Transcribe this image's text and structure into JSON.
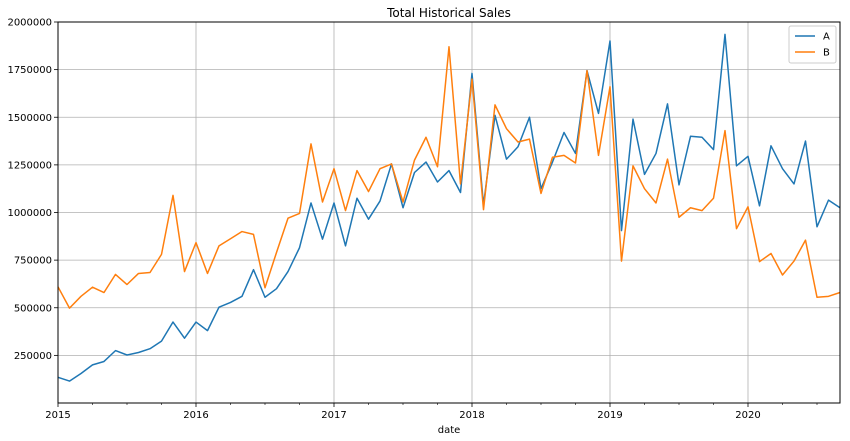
{
  "chart_data": {
    "type": "line",
    "title": "Total Historical Sales",
    "xlabel": "date",
    "ylabel": "",
    "x_start": "2015-01",
    "x_end": "2020-09",
    "xlim": [
      "2015-01",
      "2020-09"
    ],
    "ylim": [
      0,
      2000000
    ],
    "grid": true,
    "legend_position": "top-right",
    "x_ticks": [
      {
        "label": "2015",
        "month": "2015-01"
      },
      {
        "label": "2016",
        "month": "2016-01"
      },
      {
        "label": "2017",
        "month": "2017-01"
      },
      {
        "label": "2018",
        "month": "2018-01"
      },
      {
        "label": "2019",
        "month": "2019-01"
      },
      {
        "label": "2020",
        "month": "2020-01"
      }
    ],
    "y_ticks": [
      {
        "label": "250000",
        "value": 250000
      },
      {
        "label": "500000",
        "value": 500000
      },
      {
        "label": "750000",
        "value": 750000
      },
      {
        "label": "1000000",
        "value": 1000000
      },
      {
        "label": "1250000",
        "value": 1250000
      },
      {
        "label": "1500000",
        "value": 1500000
      },
      {
        "label": "1750000",
        "value": 1750000
      },
      {
        "label": "2000000",
        "value": 2000000
      }
    ],
    "series": [
      {
        "name": "A",
        "color": "#1f77b4",
        "values": [
          135000,
          115000,
          155000,
          200000,
          218000,
          275000,
          252000,
          265000,
          285000,
          325000,
          425000,
          340000,
          425000,
          380000,
          503000,
          528000,
          560000,
          700000,
          555000,
          600000,
          690000,
          815000,
          1050000,
          860000,
          1050000,
          825000,
          1075000,
          965000,
          1060000,
          1255000,
          1025000,
          1210000,
          1265000,
          1160000,
          1220000,
          1105000,
          1730000,
          1040000,
          1510000,
          1280000,
          1345000,
          1500000,
          1125000,
          1265000,
          1420000,
          1310000,
          1745000,
          1520000,
          1900000,
          905000,
          1490000,
          1200000,
          1310000,
          1570000,
          1145000,
          1400000,
          1395000,
          1330000,
          1935000,
          1245000,
          1295000,
          1035000,
          1350000,
          1230000,
          1150000,
          1375000,
          925000,
          1065000,
          1025000
        ]
      },
      {
        "name": "B",
        "color": "#ff7f0e",
        "values": [
          610000,
          498000,
          560000,
          608000,
          580000,
          675000,
          622000,
          680000,
          685000,
          780000,
          1090000,
          690000,
          842000,
          680000,
          825000,
          862000,
          900000,
          885000,
          605000,
          790000,
          970000,
          995000,
          1360000,
          1055000,
          1230000,
          1010000,
          1220000,
          1110000,
          1230000,
          1255000,
          1055000,
          1275000,
          1395000,
          1240000,
          1870000,
          1150000,
          1700000,
          1015000,
          1565000,
          1440000,
          1370000,
          1385000,
          1100000,
          1290000,
          1300000,
          1260000,
          1745000,
          1300000,
          1660000,
          745000,
          1245000,
          1125000,
          1050000,
          1280000,
          975000,
          1025000,
          1010000,
          1075000,
          1430000,
          915000,
          1030000,
          742000,
          785000,
          672000,
          745000,
          855000,
          555000,
          560000,
          580000
        ]
      }
    ]
  }
}
